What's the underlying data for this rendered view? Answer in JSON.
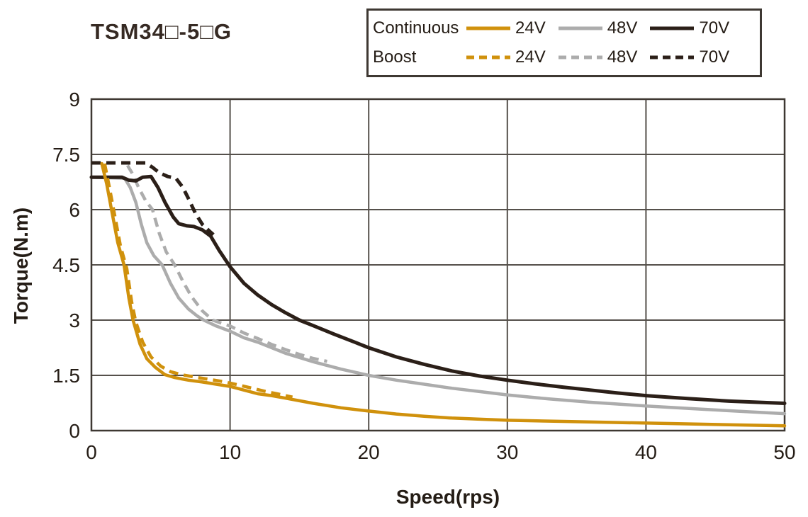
{
  "title": "TSM34□-5□G",
  "legend": {
    "rows": [
      {
        "label": "Continuous",
        "style": "solid",
        "entries": [
          {
            "label": "24V"
          },
          {
            "label": "48V"
          },
          {
            "label": "70V"
          }
        ]
      },
      {
        "label": "Boost",
        "style": "dashed",
        "entries": [
          {
            "label": "24V"
          },
          {
            "label": "48V"
          },
          {
            "label": "70V"
          }
        ]
      }
    ]
  },
  "chart_data": {
    "type": "line",
    "title": "TSM34□-5□G",
    "xlabel": "Speed(rps)",
    "ylabel": "Torque(N.m)",
    "xlim": [
      0,
      50
    ],
    "ylim": [
      0,
      9
    ],
    "xticks": [
      0,
      10,
      20,
      30,
      40,
      50
    ],
    "yticks": [
      0,
      1.5,
      3,
      4.5,
      6,
      7.5,
      9
    ],
    "grid": true,
    "legend_position": "top-right",
    "colors": {
      "24V": "#D0910C",
      "48V": "#ACACAC",
      "70V": "#2B1F18"
    },
    "grid_color": "#55504b",
    "border_color": "#3e3832",
    "tick_color": "#241c15",
    "series": [
      {
        "name": "Continuous 48V",
        "mode": "Continuous",
        "voltage": "48V",
        "style": "solid",
        "points": [
          [
            0,
            6.88
          ],
          [
            2.4,
            6.85
          ],
          [
            2.8,
            6.6
          ],
          [
            3.2,
            6.2
          ],
          [
            3.6,
            5.6
          ],
          [
            4.0,
            5.1
          ],
          [
            4.5,
            4.75
          ],
          [
            5.1,
            4.5
          ],
          [
            5.7,
            4.0
          ],
          [
            6.3,
            3.6
          ],
          [
            7.0,
            3.3
          ],
          [
            7.6,
            3.12
          ],
          [
            8.1,
            3.0
          ],
          [
            9,
            2.84
          ],
          [
            10,
            2.7
          ],
          [
            11,
            2.52
          ],
          [
            12,
            2.4
          ],
          [
            14,
            2.1
          ],
          [
            16,
            1.87
          ],
          [
            18,
            1.67
          ],
          [
            20,
            1.5
          ],
          [
            22,
            1.37
          ],
          [
            24,
            1.26
          ],
          [
            26,
            1.15
          ],
          [
            28,
            1.06
          ],
          [
            30,
            0.97
          ],
          [
            33,
            0.86
          ],
          [
            36,
            0.77
          ],
          [
            40,
            0.67
          ],
          [
            44,
            0.58
          ],
          [
            47,
            0.52
          ],
          [
            50,
            0.46
          ]
        ]
      },
      {
        "name": "Boost 48V",
        "mode": "Boost",
        "voltage": "48V",
        "style": "dashed",
        "points": [
          [
            2.6,
            7.2
          ],
          [
            3.0,
            6.95
          ],
          [
            3.4,
            6.6
          ],
          [
            3.9,
            6.25
          ],
          [
            4.4,
            6.0
          ],
          [
            4.9,
            5.35
          ],
          [
            5.4,
            4.85
          ],
          [
            6.0,
            4.5
          ],
          [
            6.6,
            4.05
          ],
          [
            7.2,
            3.65
          ],
          [
            8.0,
            3.25
          ],
          [
            8.75,
            3.0
          ],
          [
            9.5,
            2.9
          ],
          [
            10,
            2.84
          ],
          [
            11,
            2.65
          ],
          [
            12,
            2.5
          ],
          [
            13,
            2.34
          ],
          [
            14,
            2.2
          ],
          [
            15,
            2.07
          ],
          [
            16,
            1.96
          ],
          [
            17,
            1.88
          ]
        ]
      },
      {
        "name": "Continuous 70V",
        "mode": "Continuous",
        "voltage": "70V",
        "style": "solid",
        "points": [
          [
            0,
            6.88
          ],
          [
            2.2,
            6.88
          ],
          [
            2.7,
            6.8
          ],
          [
            3.2,
            6.78
          ],
          [
            3.7,
            6.88
          ],
          [
            4.3,
            6.9
          ],
          [
            4.8,
            6.6
          ],
          [
            5.3,
            6.2
          ],
          [
            5.9,
            5.8
          ],
          [
            6.3,
            5.62
          ],
          [
            6.9,
            5.56
          ],
          [
            7.4,
            5.54
          ],
          [
            8.0,
            5.45
          ],
          [
            8.6,
            5.28
          ],
          [
            9.2,
            4.9
          ],
          [
            10,
            4.45
          ],
          [
            11,
            4.0
          ],
          [
            12,
            3.68
          ],
          [
            13,
            3.42
          ],
          [
            14,
            3.2
          ],
          [
            15,
            3.0
          ],
          [
            16,
            2.85
          ],
          [
            17.5,
            2.62
          ],
          [
            19,
            2.4
          ],
          [
            20,
            2.25
          ],
          [
            22,
            2.0
          ],
          [
            24,
            1.8
          ],
          [
            26,
            1.62
          ],
          [
            28,
            1.48
          ],
          [
            30,
            1.37
          ],
          [
            32,
            1.27
          ],
          [
            34,
            1.18
          ],
          [
            36,
            1.1
          ],
          [
            38,
            1.02
          ],
          [
            40,
            0.95
          ],
          [
            43,
            0.87
          ],
          [
            46,
            0.8
          ],
          [
            50,
            0.74
          ]
        ]
      },
      {
        "name": "Boost 70V",
        "mode": "Boost",
        "voltage": "70V",
        "style": "dashed",
        "points": [
          [
            0,
            7.27
          ],
          [
            3.9,
            7.27
          ],
          [
            4.4,
            7.15
          ],
          [
            4.9,
            7.0
          ],
          [
            5.5,
            6.9
          ],
          [
            6.1,
            6.85
          ],
          [
            6.6,
            6.6
          ],
          [
            7.0,
            6.3
          ],
          [
            7.5,
            5.9
          ],
          [
            8.0,
            5.6
          ],
          [
            8.5,
            5.42
          ],
          [
            8.8,
            5.32
          ]
        ]
      },
      {
        "name": "Continuous 24V",
        "mode": "Continuous",
        "voltage": "24V",
        "style": "solid",
        "points": [
          [
            0.75,
            7.25
          ],
          [
            1.1,
            6.7
          ],
          [
            1.5,
            5.9
          ],
          [
            1.9,
            5.1
          ],
          [
            2.35,
            4.5
          ],
          [
            2.7,
            3.6
          ],
          [
            3.0,
            3.0
          ],
          [
            3.5,
            2.35
          ],
          [
            4.0,
            1.95
          ],
          [
            4.6,
            1.72
          ],
          [
            5.3,
            1.52
          ],
          [
            6.0,
            1.44
          ],
          [
            7.0,
            1.37
          ],
          [
            8.0,
            1.32
          ],
          [
            9.0,
            1.26
          ],
          [
            10,
            1.2
          ],
          [
            11,
            1.1
          ],
          [
            12,
            1.0
          ],
          [
            13,
            0.95
          ],
          [
            14,
            0.88
          ],
          [
            16,
            0.74
          ],
          [
            18,
            0.62
          ],
          [
            20,
            0.53
          ],
          [
            22,
            0.45
          ],
          [
            24,
            0.39
          ],
          [
            26,
            0.34
          ],
          [
            28,
            0.31
          ],
          [
            30,
            0.28
          ],
          [
            34,
            0.25
          ],
          [
            38,
            0.22
          ],
          [
            42,
            0.19
          ],
          [
            46,
            0.16
          ],
          [
            50,
            0.13
          ]
        ]
      },
      {
        "name": "Boost 24V",
        "mode": "Boost",
        "voltage": "24V",
        "style": "dashed",
        "points": [
          [
            0.95,
            7.25
          ],
          [
            1.3,
            6.6
          ],
          [
            1.7,
            5.8
          ],
          [
            2.1,
            5.0
          ],
          [
            2.55,
            4.4
          ],
          [
            2.9,
            3.5
          ],
          [
            3.2,
            2.95
          ],
          [
            3.7,
            2.4
          ],
          [
            4.3,
            2.0
          ],
          [
            5.0,
            1.75
          ],
          [
            5.7,
            1.6
          ],
          [
            6.5,
            1.52
          ],
          [
            7.5,
            1.45
          ],
          [
            8.5,
            1.39
          ],
          [
            9.5,
            1.33
          ],
          [
            10.5,
            1.25
          ],
          [
            11.5,
            1.16
          ],
          [
            12.5,
            1.07
          ],
          [
            13.5,
            0.99
          ],
          [
            14.5,
            0.91
          ]
        ]
      }
    ]
  }
}
